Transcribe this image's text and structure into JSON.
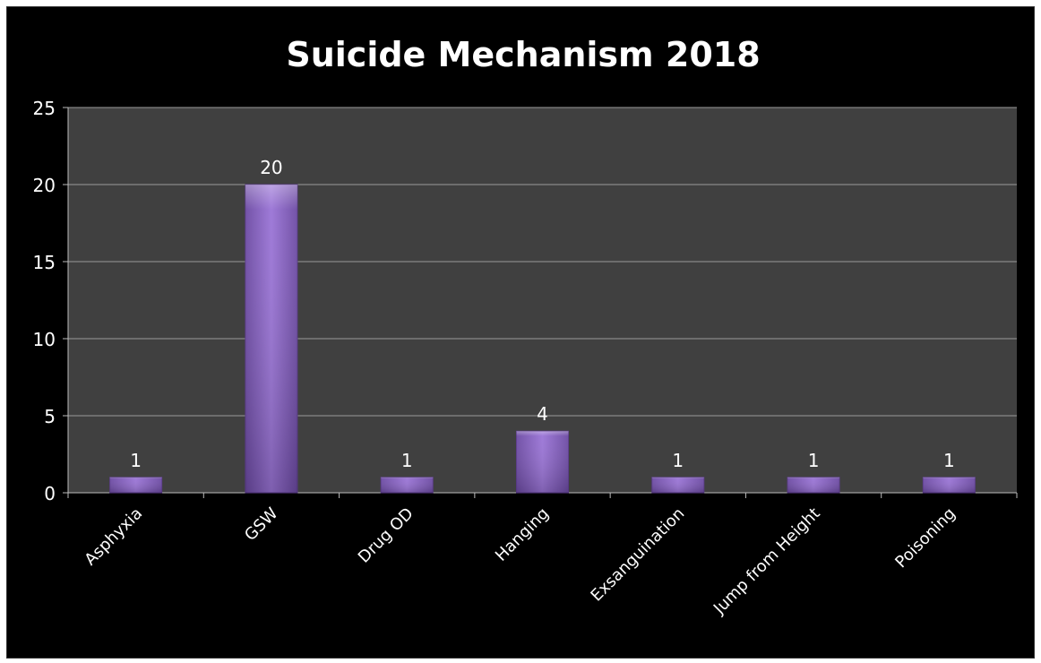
{
  "chart_data": {
    "type": "bar",
    "title": "Suicide Mechanism 2018",
    "xlabel": "",
    "ylabel": "",
    "categories": [
      "Asphyxia",
      "GSW",
      "Drug OD",
      "Hanging",
      "Exsanguination",
      "Jump from Height",
      "Poisoning"
    ],
    "values": [
      1,
      20,
      1,
      4,
      1,
      1,
      1
    ],
    "data_labels": [
      "1",
      "20",
      "1",
      "4",
      "1",
      "1",
      "1"
    ],
    "ylim": [
      0,
      25
    ],
    "yticks": [
      0,
      5,
      10,
      15,
      20,
      25
    ],
    "ytick_labels": [
      "0",
      "5",
      "10",
      "15",
      "20",
      "25"
    ],
    "grid": true,
    "legend": "none",
    "colors": {
      "background": "#000000",
      "plot_area": "#404040",
      "gridline": "#9a9a9a",
      "bar_fill": "#8a62c2",
      "bar_edge": "#5b3b8c",
      "text": "#ffffff"
    }
  }
}
